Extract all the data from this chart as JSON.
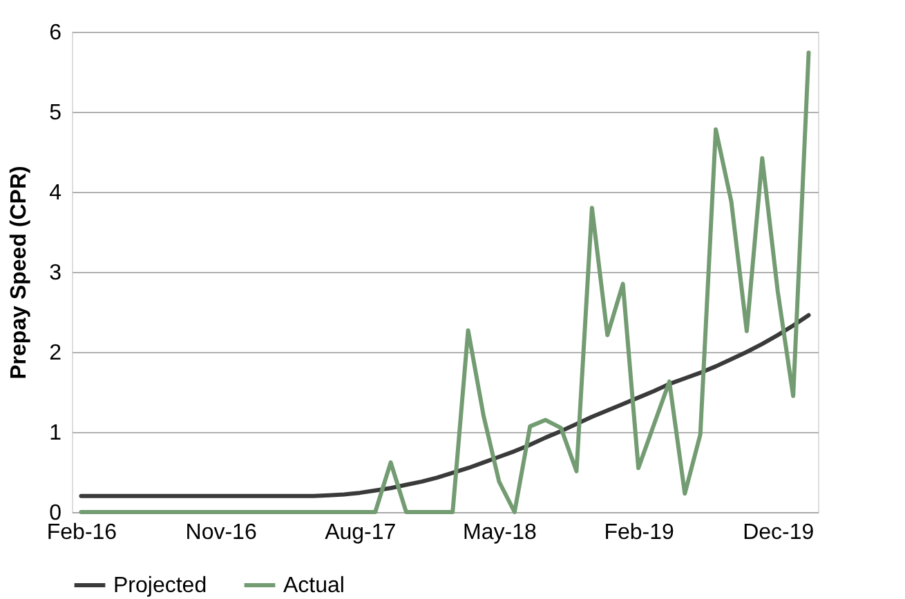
{
  "chart_data": {
    "type": "line",
    "ylabel": "Prepay Speed (CPR)",
    "categories": [
      "Feb-16",
      null,
      null,
      null,
      null,
      null,
      null,
      null,
      null,
      "Nov-16",
      null,
      null,
      null,
      null,
      null,
      null,
      null,
      null,
      "Aug-17",
      null,
      null,
      null,
      null,
      null,
      null,
      null,
      null,
      "May-18",
      null,
      null,
      null,
      null,
      null,
      null,
      null,
      null,
      "Feb-19",
      null,
      null,
      null,
      null,
      null,
      null,
      null,
      null,
      "Dec-19",
      null,
      null
    ],
    "series": [
      {
        "name": "Projected",
        "color": "#3a3a3a",
        "values": [
          0.2,
          0.2,
          0.2,
          0.2,
          0.2,
          0.2,
          0.2,
          0.2,
          0.2,
          0.2,
          0.2,
          0.2,
          0.2,
          0.2,
          0.2,
          0.2,
          0.21,
          0.22,
          0.24,
          0.27,
          0.3,
          0.34,
          0.38,
          0.43,
          0.49,
          0.55,
          0.62,
          0.69,
          0.76,
          0.84,
          0.93,
          1.01,
          1.1,
          1.19,
          1.27,
          1.35,
          1.43,
          1.51,
          1.6,
          1.67,
          1.74,
          1.82,
          1.91,
          2.0,
          2.1,
          2.21,
          2.33,
          2.46
        ]
      },
      {
        "name": "Actual",
        "color": "#739c72",
        "values": [
          0,
          0,
          0,
          0,
          0,
          0,
          0,
          0,
          0,
          0,
          0,
          0,
          0,
          0,
          0,
          0,
          0,
          0,
          0,
          0,
          0.62,
          0,
          0,
          0,
          0,
          2.27,
          1.2,
          0.38,
          0,
          1.07,
          1.15,
          1.05,
          0.51,
          3.8,
          2.21,
          2.85,
          0.55,
          1.09,
          1.63,
          0.23,
          0.97,
          4.78,
          3.88,
          2.26,
          4.42,
          2.76,
          1.45,
          5.74
        ]
      }
    ],
    "ylim": [
      0,
      6
    ],
    "yticks": [
      0,
      1,
      2,
      3,
      4,
      5,
      6
    ],
    "grid": "y",
    "legend": "bottom",
    "marker": "none",
    "line_style": "solid"
  }
}
